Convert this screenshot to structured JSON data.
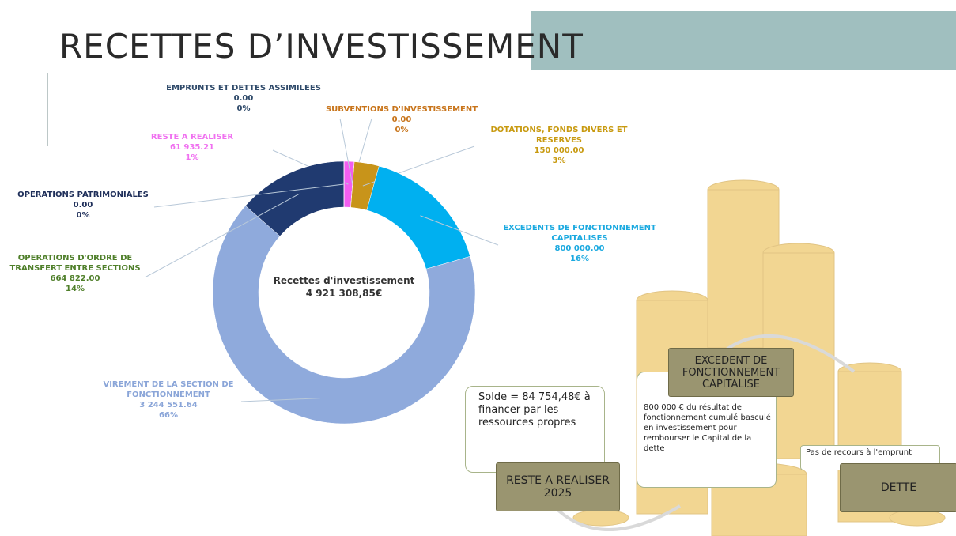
{
  "title": "RECETTES D’INVESTISSEMENT",
  "chart_data": {
    "type": "donut",
    "center_label": [
      "Recettes d'investissement",
      "4 921 308,85€"
    ],
    "categories": [
      "RESTE A REALISER",
      "EMPRUNTS ET DETTES ASSIMILEES",
      "SUBVENTIONS D'INVESTISSEMENT",
      "DOTATIONS, FONDS DIVERS ET RESERVES",
      "EXCEDENTS DE FONCTIONNEMENT CAPITALISES",
      "VIREMENT DE LA SECTION DE FONCTIONNEMENT",
      "OPERATIONS D'ORDRE DE TRANSFERT ENTRE SECTIONS",
      "OPERATIONS PATRIMONIALES"
    ],
    "values": [
      61935.21,
      0,
      0,
      150000,
      800000,
      3244551.64,
      664822,
      0
    ],
    "value_labels": [
      "61 935.21",
      "0.00",
      "0.00",
      "150 000.00",
      "800 000.00",
      "3 244 551.64",
      "664 822.00",
      "0.00"
    ],
    "percent_labels": [
      "1%",
      "0%",
      "0%",
      "3%",
      "16%",
      "66%",
      "14%",
      "0%"
    ],
    "colors": [
      "#f25ef0",
      "#5a6a8a",
      "#c0801a",
      "#c8941a",
      "#00b0f0",
      "#8faadc",
      "#203a70",
      "#334466"
    ],
    "label_colors": [
      "#f070f0",
      "#2f4a6a",
      "#c8741a",
      "#c89a10",
      "#1aa9e0",
      "#8aa5d8",
      "#4f7f2a",
      "#1f2f5a"
    ]
  },
  "boxes": {
    "solde": "Solde = 84 754,48€ à financer par les ressources propres",
    "reste": "RESTE A REALISER 2025",
    "excedent_title": "EXCEDENT DE FONCTIONNEMENT CAPITALISE",
    "excedent_text": "800 000 € du résultat de fonctionnement cumulé basculé en investissement pour rembourser le Capital de la dette",
    "recours": "Pas de recours à l'emprunt",
    "dette": "DETTE"
  }
}
